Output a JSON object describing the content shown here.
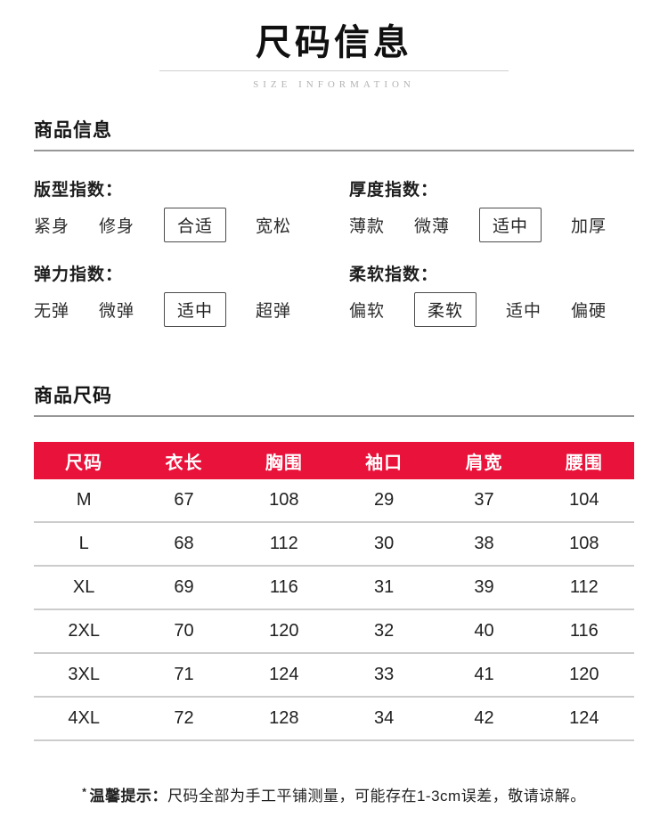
{
  "header": {
    "title": "尺码信息",
    "subtitle": "SIZE INFORMATION"
  },
  "sections": {
    "info_title": "商品信息",
    "size_title": "商品尺码"
  },
  "indices": [
    {
      "label": "版型指数：",
      "options": [
        "紧身",
        "修身",
        "合适",
        "宽松"
      ],
      "selected": 2
    },
    {
      "label": "厚度指数：",
      "options": [
        "薄款",
        "微薄",
        "适中",
        "加厚"
      ],
      "selected": 2
    },
    {
      "label": "弹力指数：",
      "options": [
        "无弹",
        "微弹",
        "适中",
        "超弹"
      ],
      "selected": 2
    },
    {
      "label": "柔软指数：",
      "options": [
        "偏软",
        "柔软",
        "适中",
        "偏硬"
      ],
      "selected": 1
    }
  ],
  "size_table": {
    "headers": [
      "尺码",
      "衣长",
      "胸围",
      "袖口",
      "肩宽",
      "腰围"
    ],
    "rows": [
      [
        "M",
        "67",
        "108",
        "29",
        "37",
        "104"
      ],
      [
        "L",
        "68",
        "112",
        "30",
        "38",
        "108"
      ],
      [
        "XL",
        "69",
        "116",
        "31",
        "39",
        "112"
      ],
      [
        "2XL",
        "70",
        "120",
        "32",
        "40",
        "116"
      ],
      [
        "3XL",
        "71",
        "124",
        "33",
        "41",
        "120"
      ],
      [
        "4XL",
        "72",
        "128",
        "34",
        "42",
        "124"
      ]
    ]
  },
  "footnote": {
    "marker": "*",
    "label": "温馨提示：",
    "text": "尺码全部为手工平铺测量，可能存在1-3cm误差，敬请谅解。"
  },
  "colors": {
    "accent_red": "#e8123a",
    "separator_gray": "#cccccc"
  }
}
